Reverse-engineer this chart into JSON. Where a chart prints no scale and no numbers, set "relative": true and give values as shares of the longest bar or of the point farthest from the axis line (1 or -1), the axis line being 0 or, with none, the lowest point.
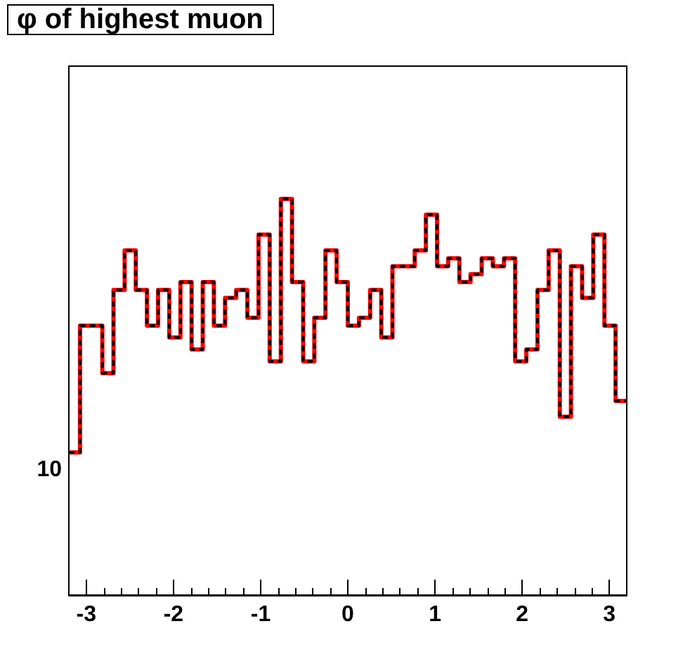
{
  "chart_data": {
    "type": "step",
    "title": "φ of highest muon",
    "relative": true,
    "annotations": [
      "10"
    ],
    "x": [
      -3.2,
      -3.072,
      -2.944,
      -2.816,
      -2.688,
      -2.56,
      -2.432,
      -2.304,
      -2.176,
      -2.048,
      -1.92,
      -1.792,
      -1.664,
      -1.536,
      -1.408,
      -1.28,
      -1.152,
      -1.024,
      -0.896,
      -0.768,
      -0.64,
      -0.512,
      -0.384,
      -0.256,
      -0.128,
      0,
      0.128,
      0.256,
      0.384,
      0.512,
      0.64,
      0.768,
      0.896,
      1.024,
      1.152,
      1.28,
      1.408,
      1.536,
      1.664,
      1.792,
      1.92,
      2.048,
      2.176,
      2.304,
      2.432,
      2.56,
      2.688,
      2.816,
      2.944,
      3.072,
      3.2
    ],
    "series": [
      {
        "color": "#ff0000",
        "line_style": "solid",
        "values": [
          0.36,
          0.68,
          0.68,
          0.56,
          0.77,
          0.87,
          0.77,
          0.68,
          0.77,
          0.65,
          0.79,
          0.62,
          0.79,
          0.68,
          0.75,
          0.77,
          0.7,
          0.91,
          0.59,
          1,
          0.79,
          0.59,
          0.7,
          0.87,
          0.79,
          0.68,
          0.7,
          0.77,
          0.65,
          0.83,
          0.83,
          0.87,
          0.96,
          0.83,
          0.85,
          0.79,
          0.81,
          0.85,
          0.83,
          0.85,
          0.59,
          0.62,
          0.77,
          0.87,
          0.45,
          0.83,
          0.75,
          0.91,
          0.68,
          0.49,
          0.49
        ]
      },
      {
        "color": "#000000",
        "line_style": "dashed",
        "values": [
          0.36,
          0.68,
          0.68,
          0.56,
          0.77,
          0.87,
          0.77,
          0.68,
          0.77,
          0.65,
          0.79,
          0.62,
          0.79,
          0.68,
          0.75,
          0.77,
          0.7,
          0.91,
          0.59,
          1,
          0.79,
          0.59,
          0.7,
          0.87,
          0.79,
          0.68,
          0.7,
          0.77,
          0.65,
          0.83,
          0.83,
          0.87,
          0.96,
          0.83,
          0.85,
          0.79,
          0.81,
          0.85,
          0.83,
          0.85,
          0.59,
          0.62,
          0.77,
          0.87,
          0.45,
          0.83,
          0.75,
          0.91,
          0.68,
          0.49,
          0.49
        ]
      }
    ],
    "xlim": [
      -3.2,
      3.2
    ],
    "xticks": [
      -3,
      {
        "value": -2.8,
        "label": null
      },
      {
        "value": -2.6,
        "label": null
      },
      {
        "value": -2.4,
        "label": null
      },
      {
        "value": -2.2,
        "label": null
      },
      -2,
      {
        "value": -1.8,
        "label": null
      },
      {
        "value": -1.6,
        "label": null
      },
      {
        "value": -1.4,
        "label": null
      },
      {
        "value": -1.2,
        "label": null
      },
      -1,
      {
        "value": -0.8,
        "label": null
      },
      {
        "value": -0.6,
        "label": null
      },
      {
        "value": -0.4,
        "label": null
      },
      {
        "value": -0.2,
        "label": null
      },
      0,
      {
        "value": 0.2,
        "label": null
      },
      {
        "value": 0.4,
        "label": null
      },
      {
        "value": 0.6,
        "label": null
      },
      {
        "value": 0.8,
        "label": null
      },
      1,
      {
        "value": 1.2,
        "label": null
      },
      {
        "value": 1.4,
        "label": null
      },
      {
        "value": 1.6,
        "label": null
      },
      {
        "value": 1.8,
        "label": null
      },
      2,
      {
        "value": 2.2,
        "label": null
      },
      {
        "value": 2.4,
        "label": null
      },
      {
        "value": 2.6,
        "label": null
      },
      {
        "value": 2.8,
        "label": null
      },
      3
    ]
  }
}
